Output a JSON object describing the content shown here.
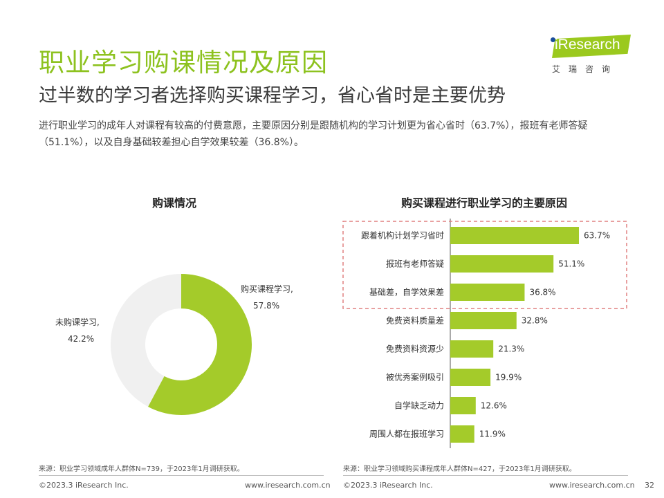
{
  "header": {
    "title": "职业学习购课情况及原因",
    "subtitle": "过半数的学习者选择购买课程学习，省心省时是主要优势",
    "description": "进行职业学习的成年人对课程有较高的付费意愿，主要原因分别是跟随机构的学习计划更为省心省时（63.7%），报班有老师答疑（51.1%），以及自身基础较差担心自学效果较差（36.8%）。"
  },
  "logo": {
    "text": "iResearch",
    "cn": "艾瑞咨询"
  },
  "colors": {
    "accent": "#8dc21f",
    "bar": "#a4cb2a",
    "donut_rest": "#f0f0f0",
    "highlight_border": "#e08080"
  },
  "chart_data": [
    {
      "type": "pie",
      "title": "购课情况",
      "donut": true,
      "slices": [
        {
          "label": "购买课程学习,",
          "value_label": "57.8%",
          "value": 57.8,
          "color": "#a4cb2a"
        },
        {
          "label": "未购课学习,",
          "value_label": "42.2%",
          "value": 42.2,
          "color": "#f0f0f0"
        }
      ]
    },
    {
      "type": "bar",
      "orientation": "horizontal",
      "title": "购买课程进行职业学习的主要原因",
      "categories": [
        "跟着机构计划学习省时",
        "报班有老师答疑",
        "基础差，自学效果差",
        "免费资料质量差",
        "免费资料资源少",
        "被优秀案例吸引",
        "自学缺乏动力",
        "周围人都在报班学习"
      ],
      "values": [
        63.7,
        51.1,
        36.8,
        32.8,
        21.3,
        19.9,
        12.6,
        11.9
      ],
      "value_labels": [
        "63.7%",
        "51.1%",
        "36.8%",
        "32.8%",
        "21.3%",
        "19.9%",
        "12.6%",
        "11.9%"
      ],
      "highlight_count": 3,
      "xlim": [
        0,
        100
      ],
      "grid": false
    }
  ],
  "notes": {
    "left": "来源：职业学习领域成年人群体N=739，于2023年1月调研获取。",
    "right": "来源：职业学习领域购买课程成年人群体N=427，于2023年1月调研获取。"
  },
  "footer": {
    "copyright": "©2023.3 iResearch Inc.",
    "url": "www.iresearch.com.cn",
    "page": "32"
  }
}
